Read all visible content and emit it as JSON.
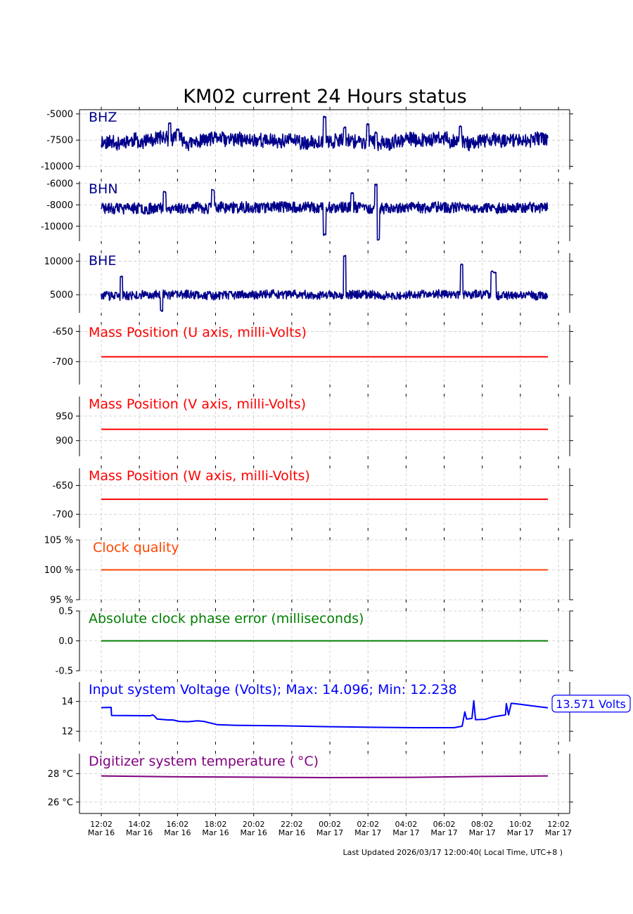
{
  "title": "KM02 current 24 Hours status",
  "footer": "Last Updated 2026/03/17 12:00:40( Local Time, UTC+8 )",
  "colors": {
    "seismic": "#00008b",
    "mass_position": "#ff0000",
    "clock_quality": "#ff4500",
    "clock_phase": "#008000",
    "voltage": "#0000ff",
    "temperature": "#800080",
    "grid": "#cccccc"
  },
  "chart_data": {
    "type": "line",
    "x_ticks": [
      {
        "time": "12:02",
        "date": "Mar 16"
      },
      {
        "time": "14:02",
        "date": "Mar 16"
      },
      {
        "time": "16:02",
        "date": "Mar 16"
      },
      {
        "time": "18:02",
        "date": "Mar 16"
      },
      {
        "time": "20:02",
        "date": "Mar 16"
      },
      {
        "time": "22:02",
        "date": "Mar 16"
      },
      {
        "time": "00:02",
        "date": "Mar 17"
      },
      {
        "time": "02:02",
        "date": "Mar 17"
      },
      {
        "time": "04:02",
        "date": "Mar 17"
      },
      {
        "time": "06:02",
        "date": "Mar 17"
      },
      {
        "time": "08:02",
        "date": "Mar 17"
      },
      {
        "time": "10:02",
        "date": "Mar 17"
      },
      {
        "time": "12:02",
        "date": "Mar 17"
      }
    ],
    "x_range": [
      "2026-03-16 11:27",
      "2026-03-17 12:27"
    ],
    "data_range": [
      "2026-03-16 12:02",
      "2026-03-17 11:42"
    ],
    "grid": true,
    "panels": [
      {
        "id": "bhz",
        "label": "BHZ",
        "color_key": "seismic",
        "type": "line",
        "ylim": [
          -10300,
          -4600
        ],
        "yticks": [
          -5000,
          -7500,
          -10000
        ],
        "ytick_labels": [
          "-5000",
          "-7500",
          "-10000"
        ],
        "trace": "noisy",
        "baseline": -7600,
        "noise": 650,
        "drift": 800,
        "seed": 11,
        "spikes": [
          [
            0.5,
            -5300
          ],
          [
            0.545,
            -6300
          ],
          [
            0.597,
            -6000
          ],
          [
            0.615,
            -6800
          ],
          [
            0.804,
            -6200
          ],
          [
            0.171,
            -6500
          ],
          [
            0.153,
            -5900
          ]
        ]
      },
      {
        "id": "bhn",
        "label": "BHN",
        "color_key": "seismic",
        "type": "line",
        "ylim": [
          -11400,
          -5800
        ],
        "yticks": [
          -6000,
          -8000,
          -10000
        ],
        "ytick_labels": [
          "-6000",
          "-8000",
          "-10000"
        ],
        "trace": "noisy",
        "baseline": -8250,
        "noise": 520,
        "drift": 250,
        "seed": 23,
        "spikes": [
          [
            0.5,
            -10800
          ],
          [
            0.62,
            -11300
          ],
          [
            0.615,
            -6100
          ],
          [
            0.142,
            -6800
          ],
          [
            0.25,
            -6600
          ],
          [
            0.562,
            -6900
          ]
        ]
      },
      {
        "id": "bhe",
        "label": "BHE",
        "color_key": "seismic",
        "type": "line",
        "ylim": [
          2300,
          11200
        ],
        "yticks": [
          5000,
          10000
        ],
        "ytick_labels": [
          "5000",
          "10000"
        ],
        "trace": "noisy",
        "baseline": 5000,
        "noise": 650,
        "drift": 400,
        "seed": 37,
        "spikes": [
          [
            0.545,
            10800
          ],
          [
            0.807,
            9500
          ],
          [
            0.875,
            8500
          ],
          [
            0.881,
            8300
          ],
          [
            0.045,
            7700
          ],
          [
            0.135,
            2600
          ]
        ]
      },
      {
        "id": "mass_u",
        "label": "Mass Position (U axis, milli-Volts)",
        "color_key": "mass_position",
        "type": "line",
        "ylim": [
          -738,
          -639
        ],
        "yticks": [
          -650,
          -700
        ],
        "ytick_labels": [
          "-650",
          "-700"
        ],
        "trace": "flat",
        "value": -692
      },
      {
        "id": "mass_v",
        "label": "Mass Position (V axis, milli-Volts)",
        "color_key": "mass_position",
        "type": "line",
        "ylim": [
          868,
          990
        ],
        "yticks": [
          950,
          900
        ],
        "ytick_labels": [
          "950",
          "900"
        ],
        "trace": "flat",
        "value": 923
      },
      {
        "id": "mass_w",
        "label": "Mass Position (W axis, milli-Volts)",
        "color_key": "mass_position",
        "type": "line",
        "ylim": [
          -724,
          -620
        ],
        "yticks": [
          -650,
          -700
        ],
        "ytick_labels": [
          "-650",
          "-700"
        ],
        "trace": "flat",
        "value": -674
      },
      {
        "id": "clock_quality",
        "label": "Clock quality",
        "color_key": "clock_quality",
        "type": "line",
        "ylim": [
          95,
          105
        ],
        "yticks": [
          105,
          100,
          95
        ],
        "ytick_labels": [
          "105 %",
          "100 %",
          "95 %"
        ],
        "trace": "flat",
        "value": 100
      },
      {
        "id": "clock_phase",
        "label": "Absolute clock phase error (milliseconds)",
        "color_key": "clock_phase",
        "type": "line",
        "ylim": [
          -0.5,
          0.5
        ],
        "yticks": [
          0.5,
          0.0,
          -0.5
        ],
        "ytick_labels": [
          "0.5",
          "0.0",
          "-0.5"
        ],
        "trace": "flat",
        "value": 0.0
      },
      {
        "id": "voltage",
        "label": "Input system Voltage (Volts);    Max: 14.096; Min: 12.238",
        "color_key": "voltage",
        "type": "line",
        "ylim": [
          11.3,
          15.3
        ],
        "yticks": [
          14,
          12
        ],
        "ytick_labels": [
          "14",
          "12"
        ],
        "trace": "points",
        "points": [
          [
            0.0,
            13.58
          ],
          [
            0.022,
            13.6
          ],
          [
            0.023,
            13.06
          ],
          [
            0.11,
            13.04
          ],
          [
            0.115,
            13.1
          ],
          [
            0.12,
            13.0
          ],
          [
            0.125,
            12.82
          ],
          [
            0.15,
            12.76
          ],
          [
            0.16,
            12.76
          ],
          [
            0.175,
            12.66
          ],
          [
            0.195,
            12.64
          ],
          [
            0.215,
            12.7
          ],
          [
            0.23,
            12.66
          ],
          [
            0.26,
            12.44
          ],
          [
            0.3,
            12.4
          ],
          [
            0.4,
            12.37
          ],
          [
            0.5,
            12.31
          ],
          [
            0.6,
            12.27
          ],
          [
            0.7,
            12.24
          ],
          [
            0.79,
            12.24
          ],
          [
            0.808,
            12.34
          ],
          [
            0.814,
            13.3
          ],
          [
            0.818,
            12.82
          ],
          [
            0.83,
            12.86
          ],
          [
            0.834,
            14.05
          ],
          [
            0.838,
            12.78
          ],
          [
            0.86,
            12.8
          ],
          [
            0.875,
            12.95
          ],
          [
            0.905,
            13.1
          ],
          [
            0.907,
            13.85
          ],
          [
            0.912,
            13.1
          ],
          [
            0.918,
            13.88
          ],
          [
            0.935,
            13.82
          ],
          [
            0.97,
            13.68
          ],
          [
            1.0,
            13.57
          ]
        ],
        "annotation": "13.571 Volts"
      },
      {
        "id": "temperature",
        "label": "Digitizer system temperature ($^\\circ$C)",
        "color_key": "temperature",
        "type": "line",
        "ylim": [
          25.2,
          29.4
        ],
        "yticks": [
          28,
          26
        ],
        "ytick_labels": [
          "28 °C",
          "26 °C"
        ],
        "trace": "points",
        "points": [
          [
            0.0,
            27.84
          ],
          [
            0.15,
            27.78
          ],
          [
            0.3,
            27.76
          ],
          [
            0.5,
            27.72
          ],
          [
            0.7,
            27.74
          ],
          [
            0.85,
            27.8
          ],
          [
            1.0,
            27.84
          ]
        ]
      }
    ]
  }
}
